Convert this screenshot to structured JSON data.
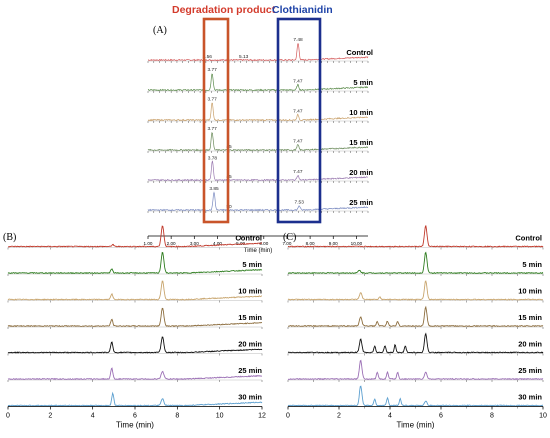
{
  "headers": {
    "degradation": "Degradation product",
    "clothianidin": "Clothianidin"
  },
  "colors": {
    "degradation_box": "#c9542a",
    "clothianidin_box": "#1c2f8e",
    "degradation_text": "#d33b2c",
    "clothianidin_text": "#1f44a8"
  },
  "chart_data": [
    {
      "panel": "(A)",
      "type": "line",
      "xlabel": "Time (min)",
      "xlim": [
        1.0,
        10.5
      ],
      "x_ticks": [
        "1.00",
        "2.00",
        "3.00",
        "4.00",
        "5.00",
        "6.00",
        "7.00",
        "8.00",
        "9.00",
        "10.00"
      ],
      "series": [
        {
          "name": "Control",
          "color": "#d45a5a",
          "peaks": [
            {
              "rt": 7.48,
              "label": "7.48",
              "height": 0.7
            }
          ],
          "extra_labels": [
            "3.56",
            "5.13"
          ]
        },
        {
          "name": "5 min",
          "color": "#5a8a4a",
          "peaks": [
            {
              "rt": 3.77,
              "label": "3.77",
              "height": 0.7
            },
            {
              "rt": 7.47,
              "label": "7.47",
              "height": 0.22
            }
          ]
        },
        {
          "name": "10 min",
          "color": "#c9a06a",
          "peaks": [
            {
              "rt": 3.77,
              "label": "3.77",
              "height": 0.72
            },
            {
              "rt": 7.47,
              "label": "7.47",
              "height": 0.22
            }
          ]
        },
        {
          "name": "15 min",
          "color": "#6a8a5a",
          "peaks": [
            {
              "rt": 3.77,
              "label": "3.77",
              "height": 0.75
            },
            {
              "rt": 7.47,
              "label": "7.47",
              "height": 0.22
            }
          ],
          "extra_labels": [
            "45"
          ]
        },
        {
          "name": "20 min",
          "color": "#9a7ab0",
          "peaks": [
            {
              "rt": 3.78,
              "label": "3.78",
              "height": 0.78
            },
            {
              "rt": 7.47,
              "label": "7.47",
              "height": 0.2
            }
          ],
          "extra_labels": [
            "45"
          ]
        },
        {
          "name": "25 min",
          "color": "#7a8ac0",
          "peaks": [
            {
              "rt": 3.85,
              "label": "3.85",
              "height": 0.75
            },
            {
              "rt": 7.53,
              "label": "7.53",
              "height": 0.18
            }
          ],
          "extra_labels": [
            "50"
          ]
        }
      ]
    },
    {
      "panel": "(B)",
      "type": "line",
      "xlabel": "Time (min)",
      "xlim": [
        0,
        12
      ],
      "x_ticks": [
        0,
        2,
        4,
        6,
        8,
        10,
        12
      ],
      "series": [
        {
          "name": "Control",
          "color": "#c0392b",
          "peaks": [
            {
              "rt": 7.3,
              "height": 0.95,
              "w": 0.09
            },
            {
              "rt": 4.95,
              "height": 0.1,
              "w": 0.06
            }
          ]
        },
        {
          "name": "5 min",
          "color": "#2e7d1f",
          "peaks": [
            {
              "rt": 7.3,
              "height": 0.95,
              "w": 0.09
            },
            {
              "rt": 4.9,
              "height": 0.18,
              "w": 0.07
            }
          ]
        },
        {
          "name": "10 min",
          "color": "#c8a56e",
          "peaks": [
            {
              "rt": 7.3,
              "height": 0.85,
              "w": 0.09
            },
            {
              "rt": 4.9,
              "height": 0.25,
              "w": 0.07
            }
          ]
        },
        {
          "name": "15 min",
          "color": "#8d6e3f",
          "peaks": [
            {
              "rt": 7.3,
              "height": 0.82,
              "w": 0.09
            },
            {
              "rt": 4.9,
              "height": 0.3,
              "w": 0.07
            }
          ]
        },
        {
          "name": "20 min",
          "color": "#111111",
          "peaks": [
            {
              "rt": 7.3,
              "height": 0.7,
              "w": 0.09
            },
            {
              "rt": 4.9,
              "height": 0.5,
              "w": 0.07
            }
          ]
        },
        {
          "name": "25 min",
          "color": "#9b6fb5",
          "peaks": [
            {
              "rt": 7.3,
              "height": 0.35,
              "w": 0.09
            },
            {
              "rt": 4.9,
              "height": 0.5,
              "w": 0.07
            }
          ]
        },
        {
          "name": "30 min",
          "color": "#5da0d0",
          "peaks": [
            {
              "rt": 7.3,
              "height": 0.3,
              "w": 0.09
            },
            {
              "rt": 4.95,
              "height": 0.55,
              "w": 0.07
            }
          ]
        }
      ]
    },
    {
      "panel": "(C)",
      "type": "line",
      "xlabel": "Time (min)",
      "xlim": [
        0,
        10
      ],
      "x_ticks": [
        0,
        2,
        4,
        6,
        8,
        10
      ],
      "series": [
        {
          "name": "Control",
          "color": "#c0392b",
          "peaks": [
            {
              "rt": 5.4,
              "height": 0.95,
              "w": 0.07
            }
          ]
        },
        {
          "name": "5 min",
          "color": "#2e7d1f",
          "peaks": [
            {
              "rt": 5.4,
              "height": 0.95,
              "w": 0.07
            },
            {
              "rt": 2.8,
              "height": 0.12,
              "w": 0.07
            }
          ]
        },
        {
          "name": "10 min",
          "color": "#c8a56e",
          "peaks": [
            {
              "rt": 5.4,
              "height": 0.85,
              "w": 0.07
            },
            {
              "rt": 2.85,
              "height": 0.3,
              "w": 0.07
            },
            {
              "rt": 3.6,
              "height": 0.12,
              "w": 0.05
            }
          ]
        },
        {
          "name": "15 min",
          "color": "#8d6e3f",
          "peaks": [
            {
              "rt": 5.4,
              "height": 0.85,
              "w": 0.07
            },
            {
              "rt": 2.85,
              "height": 0.4,
              "w": 0.07
            },
            {
              "rt": 3.5,
              "height": 0.2,
              "w": 0.05
            },
            {
              "rt": 3.9,
              "height": 0.22,
              "w": 0.05
            },
            {
              "rt": 4.3,
              "height": 0.2,
              "w": 0.05
            }
          ]
        },
        {
          "name": "20 min",
          "color": "#111111",
          "peaks": [
            {
              "rt": 5.4,
              "height": 0.85,
              "w": 0.07
            },
            {
              "rt": 2.85,
              "height": 0.6,
              "w": 0.07
            },
            {
              "rt": 3.4,
              "height": 0.3,
              "w": 0.05
            },
            {
              "rt": 3.8,
              "height": 0.32,
              "w": 0.05
            },
            {
              "rt": 4.2,
              "height": 0.35,
              "w": 0.05
            },
            {
              "rt": 4.6,
              "height": 0.3,
              "w": 0.05
            }
          ]
        },
        {
          "name": "25 min",
          "color": "#9b6fb5",
          "peaks": [
            {
              "rt": 5.4,
              "height": 0.3,
              "w": 0.07
            },
            {
              "rt": 2.85,
              "height": 0.85,
              "w": 0.07
            },
            {
              "rt": 3.5,
              "height": 0.3,
              "w": 0.05
            },
            {
              "rt": 3.9,
              "height": 0.3,
              "w": 0.05
            },
            {
              "rt": 4.3,
              "height": 0.3,
              "w": 0.05
            }
          ]
        },
        {
          "name": "30 min",
          "color": "#5da0d0",
          "peaks": [
            {
              "rt": 5.4,
              "height": 0.2,
              "w": 0.07
            },
            {
              "rt": 2.85,
              "height": 0.9,
              "w": 0.07
            },
            {
              "rt": 3.4,
              "height": 0.3,
              "w": 0.05
            },
            {
              "rt": 3.9,
              "height": 0.35,
              "w": 0.05
            },
            {
              "rt": 4.4,
              "height": 0.3,
              "w": 0.05
            }
          ]
        }
      ]
    }
  ]
}
